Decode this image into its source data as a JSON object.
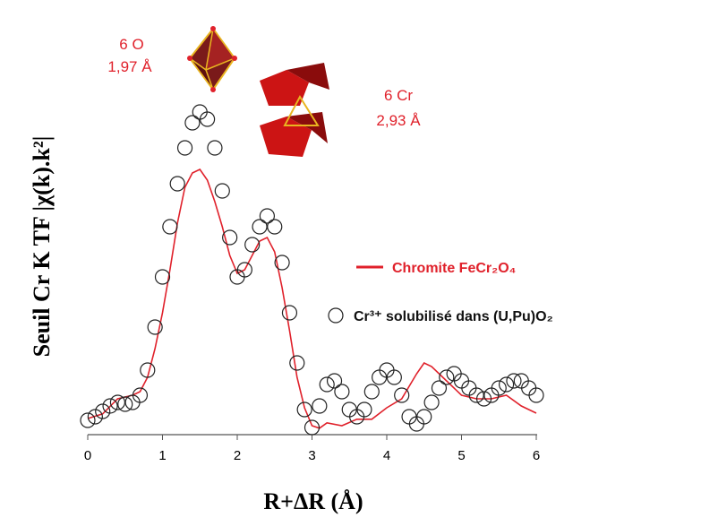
{
  "chart_data": {
    "type": "line",
    "ylabel": "Seuil Cr K TF |χ(k).k²|",
    "xlabel": "R+ΔR (Å)",
    "annotations": [
      "6 O",
      "1,97 Å",
      "6 Cr",
      "2,93 Å"
    ],
    "xlim": [
      0,
      6
    ],
    "xticks": [
      0,
      1,
      2,
      3,
      4,
      5,
      6
    ],
    "ylim": [
      0,
      1
    ],
    "series": [
      {
        "name": "Chromite FeCr₂O₄",
        "type": "line",
        "color": "#e0212b",
        "x": [
          0,
          0.2,
          0.4,
          0.6,
          0.7,
          0.8,
          0.9,
          1.0,
          1.1,
          1.2,
          1.3,
          1.4,
          1.5,
          1.6,
          1.7,
          1.8,
          1.9,
          2.0,
          2.1,
          2.2,
          2.3,
          2.4,
          2.5,
          2.6,
          2.7,
          2.8,
          2.9,
          3.0,
          3.1,
          3.2,
          3.4,
          3.6,
          3.8,
          4.0,
          4.2,
          4.4,
          4.5,
          4.6,
          4.8,
          5.0,
          5.2,
          5.4,
          5.6,
          5.8,
          6.0
        ],
        "values": [
          0.045,
          0.058,
          0.1,
          0.11,
          0.12,
          0.16,
          0.24,
          0.34,
          0.46,
          0.59,
          0.69,
          0.73,
          0.74,
          0.71,
          0.65,
          0.58,
          0.5,
          0.45,
          0.46,
          0.5,
          0.54,
          0.55,
          0.51,
          0.41,
          0.29,
          0.16,
          0.075,
          0.025,
          0.018,
          0.033,
          0.025,
          0.043,
          0.043,
          0.075,
          0.1,
          0.17,
          0.2,
          0.19,
          0.15,
          0.11,
          0.1,
          0.1,
          0.11,
          0.08,
          0.06
        ]
      },
      {
        "name": "Cr³⁺ solubilisé dans (U,Pu)O₂",
        "type": "scatter",
        "color": "#222222",
        "x": [
          0,
          0.1,
          0.2,
          0.3,
          0.4,
          0.5,
          0.6,
          0.7,
          0.8,
          0.9,
          1.0,
          1.1,
          1.2,
          1.3,
          1.4,
          1.5,
          1.6,
          1.7,
          1.8,
          1.9,
          2.0,
          2.1,
          2.2,
          2.3,
          2.4,
          2.5,
          2.6,
          2.7,
          2.8,
          2.9,
          3.0,
          3.1,
          3.2,
          3.3,
          3.4,
          3.5,
          3.6,
          3.7,
          3.8,
          3.9,
          4.0,
          4.1,
          4.2,
          4.3,
          4.4,
          4.5,
          4.6,
          4.7,
          4.8,
          4.9,
          5.0,
          5.1,
          5.2,
          5.3,
          5.4,
          5.5,
          5.6,
          5.7,
          5.8,
          5.9,
          6.0
        ],
        "values": [
          0.04,
          0.05,
          0.065,
          0.08,
          0.09,
          0.085,
          0.09,
          0.11,
          0.18,
          0.3,
          0.44,
          0.58,
          0.7,
          0.8,
          0.87,
          0.9,
          0.88,
          0.8,
          0.68,
          0.55,
          0.44,
          0.46,
          0.53,
          0.58,
          0.61,
          0.58,
          0.48,
          0.34,
          0.2,
          0.07,
          0.02,
          0.08,
          0.14,
          0.15,
          0.12,
          0.07,
          0.05,
          0.07,
          0.12,
          0.16,
          0.18,
          0.16,
          0.11,
          0.05,
          0.03,
          0.05,
          0.09,
          0.13,
          0.16,
          0.17,
          0.15,
          0.13,
          0.11,
          0.1,
          0.11,
          0.13,
          0.14,
          0.15,
          0.15,
          0.13,
          0.11
        ]
      }
    ]
  }
}
